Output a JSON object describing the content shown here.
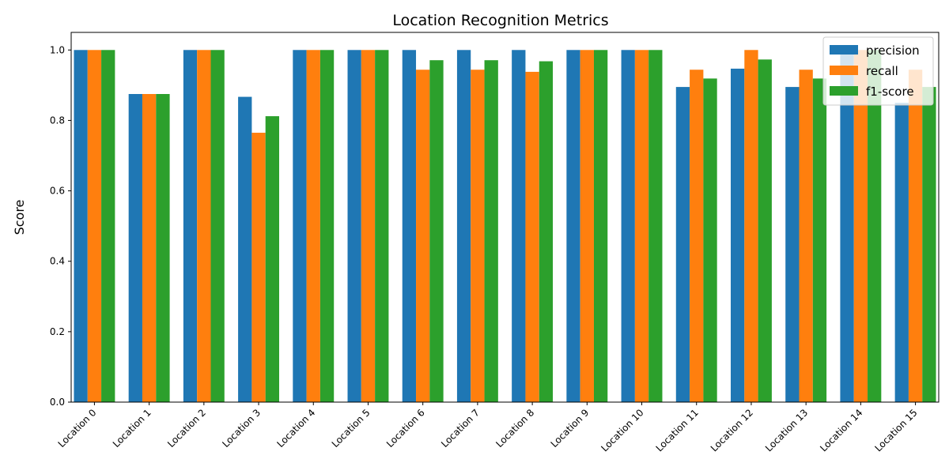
{
  "chart_data": {
    "type": "bar",
    "title": "Location Recognition Metrics",
    "xlabel": "",
    "ylabel": "Score",
    "ylim": [
      0,
      1.05
    ],
    "yticks": [
      "0.0",
      "0.2",
      "0.4",
      "0.6",
      "0.8",
      "1.0"
    ],
    "grid": false,
    "legend_position": "top-right",
    "categories": [
      "Location 0",
      "Location 1",
      "Location 2",
      "Location 3",
      "Location 4",
      "Location 5",
      "Location 6",
      "Location 7",
      "Location 8",
      "Location 9",
      "Location 10",
      "Location 11",
      "Location 12",
      "Location 13",
      "Location 14",
      "Location 15"
    ],
    "series": [
      {
        "name": "precision",
        "color": "#1f77b4",
        "values": [
          1.0,
          0.875,
          1.0,
          0.867,
          1.0,
          1.0,
          1.0,
          1.0,
          1.0,
          1.0,
          1.0,
          0.895,
          0.947,
          0.895,
          1.0,
          0.85
        ]
      },
      {
        "name": "recall",
        "color": "#ff7f0e",
        "values": [
          1.0,
          0.875,
          1.0,
          0.765,
          1.0,
          1.0,
          0.944,
          0.944,
          0.938,
          1.0,
          1.0,
          0.944,
          1.0,
          0.944,
          1.0,
          0.944
        ]
      },
      {
        "name": "f1-score",
        "color": "#2ca02c",
        "values": [
          1.0,
          0.875,
          1.0,
          0.812,
          1.0,
          1.0,
          0.971,
          0.971,
          0.968,
          1.0,
          1.0,
          0.919,
          0.973,
          0.919,
          1.0,
          0.895
        ]
      }
    ]
  }
}
